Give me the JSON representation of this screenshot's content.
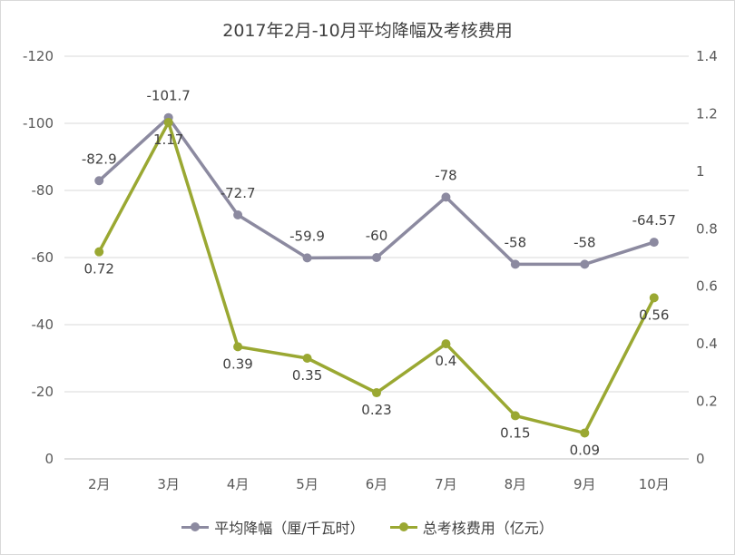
{
  "chart_data": {
    "type": "line",
    "title": "2017年2月-10月平均降幅及考核费用",
    "categories": [
      "2月",
      "3月",
      "4月",
      "5月",
      "6月",
      "7月",
      "8月",
      "9月",
      "10月"
    ],
    "series": [
      {
        "name": "平均降幅（厘/千瓦时）",
        "axis": "left",
        "color": "#8c8aa0",
        "values": [
          -82.9,
          -101.7,
          -72.7,
          -59.9,
          -60,
          -78,
          -58,
          -58,
          -64.57
        ],
        "labels": [
          "-82.9",
          "-101.7",
          "-72.7",
          "-59.9",
          "-60",
          "-78",
          "-58",
          "-58",
          "-64.57"
        ]
      },
      {
        "name": "总考核费用（亿元）",
        "axis": "right",
        "color": "#9aa832",
        "values": [
          0.72,
          1.17,
          0.39,
          0.35,
          0.23,
          0.4,
          0.15,
          0.09,
          0.56
        ],
        "labels": [
          "0.72",
          "1.17",
          "0.39",
          "0.35",
          "0.23",
          "0.4",
          "0.15",
          "0.09",
          "0.56"
        ]
      }
    ],
    "y_left": {
      "ticks": [
        "-120",
        "-100",
        "-80",
        "-60",
        "-40",
        "-20",
        "0"
      ],
      "range": [
        0,
        -120
      ],
      "reversed": true
    },
    "y_right": {
      "ticks": [
        "1.4",
        "1.2",
        "1",
        "0.8",
        "0.6",
        "0.4",
        "0.2",
        "0"
      ],
      "range": [
        0,
        1.4
      ]
    },
    "grid": true,
    "legend_position": "bottom"
  }
}
